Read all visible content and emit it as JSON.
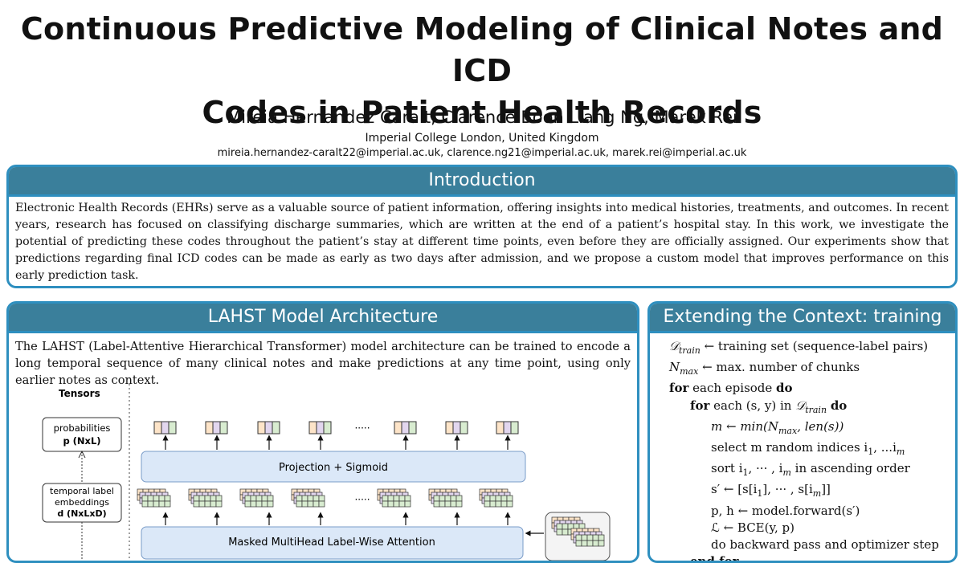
{
  "header": {
    "title_line1": "Continuous Predictive Modeling of Clinical Notes and ICD",
    "title_line2": "Codes in Patient Health Records",
    "authors": "Mireia Hernandez Caralt, Clarence Boon Liang Ng, Marek Rei",
    "affiliation": "Imperial College London, United Kingdom",
    "emails": "mireia.hernandez-caralt22@imperial.ac.uk, clarence.ng21@imperial.ac.uk, marek.rei@imperial.ac.uk"
  },
  "introduction": {
    "heading": "Introduction",
    "body": "Electronic Health Records (EHRs) serve as a valuable source of patient information, offering insights into medical histories, treatments, and outcomes. In recent years, research has focused on classifying discharge summaries, which are written at the end of a patient’s hospital stay. In this work, we investigate the potential of predicting these codes throughout the patient’s stay at different time points, even before they are officially assigned. Our experiments show that predictions regarding final ICD codes can be made as early as two days after admission, and we propose a custom model that improves performance on this early prediction task."
  },
  "lahst": {
    "heading": "LAHST Model Architecture",
    "body": "The LAHST (Label-Attentive Hierarchical Transformer) model architecture can be trained to encode a long temporal sequence of many clinical notes and make predictions at any time point, using only earlier notes as context.",
    "diagram": {
      "tensors_label": "Tensors",
      "prob_line1": "probabilities",
      "prob_line2": "p (NxL)",
      "temp_line1": "temporal label",
      "temp_line2": "embeddings",
      "temp_line3": "d (NxLxD)",
      "projection_label": "Projection + Sigmoid",
      "attention_label": "Masked MultiHead Label-Wise Attention",
      "dots": "·····"
    }
  },
  "extending": {
    "heading": "Extending the Context: training",
    "algorithm": {
      "l1_rest": " ← training set (sequence-label pairs)",
      "l2_rest": " ← max. number of chunks",
      "l3_kw": "for",
      "l3_text": " each episode ",
      "l3_kw2": "do",
      "l4_kw": "for",
      "l4_text": " each (s, y) in ",
      "l4_kw2": "do",
      "l5_text": "m ← min(N",
      "l5_text2": ", len(s))",
      "l6_text": "select m random indices i",
      "l6_text2": ", ...i",
      "l7_text": "sort i",
      "l7_text2": ", ··· , i",
      "l7_text3": " in ascending order",
      "l8_text": "s′ ← [s[i",
      "l8_text2": "], ··· , s[i",
      "l8_text3": "]]",
      "l9_text": "p, h ← model.forward(s′)",
      "l10_text": "ℒ ← BCE(y, p)",
      "l11_text": "do backward pass and optimizer step",
      "l12_kw": "end for"
    }
  }
}
